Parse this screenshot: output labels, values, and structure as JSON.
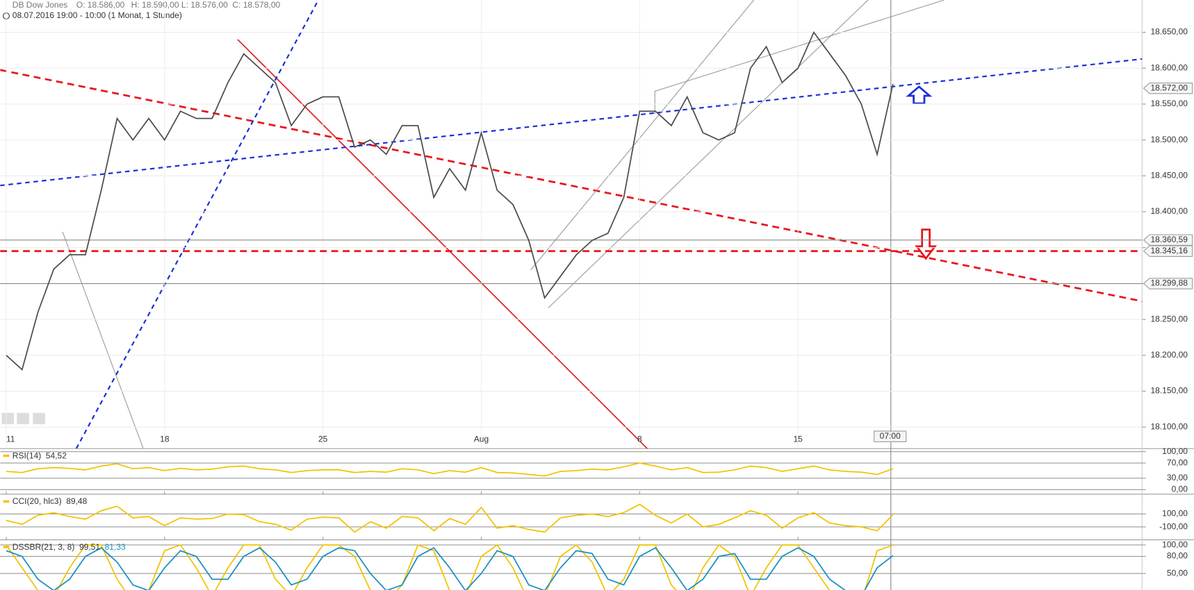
{
  "chart_data": [
    {
      "type": "line",
      "title": "DB Dow Jones",
      "ohlc": [
        "O: 18.586,00",
        "H: 18.590,00",
        "L: 18.576,00",
        "C: 18.578,00"
      ],
      "subtitle": "08.07.2016 19:00 - 10:00 (1 Monat, 1 Stunde)",
      "crosshair_label": "07:00",
      "categories": [
        "11",
        null,
        null,
        null,
        null,
        null,
        null,
        null,
        null,
        null,
        "18",
        null,
        null,
        null,
        null,
        null,
        null,
        null,
        null,
        null,
        "25",
        null,
        null,
        null,
        null,
        null,
        null,
        null,
        null,
        null,
        "Aug",
        null,
        null,
        null,
        null,
        null,
        null,
        null,
        null,
        null,
        "8",
        null,
        null,
        null,
        null,
        null,
        null,
        null,
        null,
        null,
        "15",
        null,
        null,
        null,
        null,
        null,
        null
      ],
      "series": [
        {
          "color": "#4d4d4d",
          "values": [
            18200,
            18180,
            18260,
            18320,
            18340,
            18340,
            18430,
            18530,
            18500,
            18530,
            18500,
            18540,
            18530,
            18530,
            18580,
            18620,
            18600,
            18580,
            18520,
            18550,
            18560,
            18560,
            18490,
            18500,
            18480,
            18520,
            18520,
            18420,
            18460,
            18430,
            18510,
            18430,
            18410,
            18360,
            18280,
            18310,
            18340,
            18360,
            18370,
            18420,
            18540,
            18540,
            18520,
            18560,
            18510,
            18500,
            18510,
            18600,
            18630,
            18580,
            18600,
            18650,
            18620,
            18590,
            18550,
            18480,
            18578
          ]
        }
      ],
      "ylim": [
        18070,
        18695
      ],
      "yticks": [
        {
          "value": 18100,
          "label": "18.100,00"
        },
        {
          "value": 18150,
          "label": "18.150,00"
        },
        {
          "value": 18200,
          "label": "18.200,00"
        },
        {
          "value": 18250,
          "label": "18.250,00"
        },
        {
          "value": 18300,
          "label": "18.300,00"
        },
        {
          "value": 18350,
          "label": "18.350,00"
        },
        {
          "value": 18400,
          "label": "18.400,00"
        },
        {
          "value": 18450,
          "label": "18.450,00"
        },
        {
          "value": 18500,
          "label": "18.500,00"
        },
        {
          "value": 18550,
          "label": "18.550,00"
        },
        {
          "value": 18600,
          "label": "18.600,00"
        },
        {
          "value": 18650,
          "label": "18.650,00"
        }
      ],
      "levels": [
        {
          "value": 18572,
          "label": "18.572,00",
          "color": "#888888",
          "line": "none"
        },
        {
          "value": 18360.59,
          "label": "18.360,59",
          "color": "#888888",
          "line": "solid"
        },
        {
          "value": 18345.16,
          "label": "18.345,16",
          "color": "#e8141b",
          "line": "dashed"
        },
        {
          "value": 18299.88,
          "label": "18.299,88",
          "color": "#888888",
          "line": "solid"
        }
      ],
      "grid": true
    },
    {
      "type": "line",
      "title": "RSI(14)",
      "series": [
        {
          "color": "#f2c300",
          "last": "54,52",
          "values": [
            48,
            45,
            55,
            58,
            56,
            52,
            62,
            68,
            55,
            58,
            50,
            56,
            52,
            54,
            60,
            62,
            55,
            52,
            45,
            50,
            52,
            52,
            45,
            48,
            46,
            55,
            52,
            42,
            50,
            46,
            58,
            45,
            44,
            40,
            36,
            48,
            50,
            54,
            52,
            60,
            70,
            62,
            52,
            58,
            45,
            46,
            52,
            62,
            58,
            48,
            55,
            62,
            52,
            48,
            46,
            40,
            54.52
          ]
        }
      ],
      "ylim": [
        -12,
        108
      ],
      "yticks": [
        {
          "value": 0,
          "label": "0,00"
        },
        {
          "value": 30,
          "label": "30,00"
        },
        {
          "value": 70,
          "label": "70,00"
        },
        {
          "value": 100,
          "label": "100,00"
        }
      ],
      "grid": true
    },
    {
      "type": "line",
      "title": "CCI(20, hlc3)",
      "series": [
        {
          "color": "#f2c300",
          "last": "89,48",
          "values": [
            0,
            -60,
            80,
            120,
            60,
            20,
            150,
            220,
            40,
            60,
            -80,
            40,
            20,
            30,
            100,
            90,
            -20,
            -60,
            -150,
            20,
            50,
            40,
            -180,
            -20,
            -120,
            60,
            40,
            -160,
            30,
            -60,
            200,
            -120,
            -80,
            -140,
            -180,
            40,
            80,
            100,
            60,
            120,
            250,
            80,
            -40,
            100,
            -100,
            -60,
            40,
            150,
            80,
            -120,
            40,
            120,
            -40,
            -80,
            -100,
            -160,
            89.48
          ]
        }
      ],
      "ylim": [
        -300,
        406
      ],
      "yticks": [
        {
          "value": -100,
          "label": "-100,00"
        },
        {
          "value": 100,
          "label": "100,00"
        }
      ],
      "grid": true
    },
    {
      "type": "line",
      "title": "DSSBR(21, 3, 8)",
      "series": [
        {
          "color": "#f2c300",
          "last": "99,51",
          "values": [
            100,
            60,
            20,
            10,
            60,
            100,
            100,
            40,
            0,
            20,
            90,
            100,
            60,
            10,
            60,
            100,
            100,
            40,
            10,
            60,
            100,
            100,
            80,
            20,
            0,
            30,
            100,
            90,
            20,
            10,
            80,
            100,
            60,
            0,
            10,
            80,
            100,
            70,
            10,
            40,
            100,
            100,
            30,
            0,
            60,
            100,
            80,
            10,
            60,
            100,
            100,
            60,
            20,
            10,
            0,
            90,
            99.51
          ]
        },
        {
          "color": "#1a8fc0",
          "last": "81,33",
          "values": [
            90,
            80,
            40,
            20,
            40,
            80,
            95,
            70,
            30,
            20,
            60,
            90,
            80,
            40,
            40,
            80,
            95,
            70,
            30,
            40,
            80,
            95,
            90,
            50,
            20,
            30,
            80,
            95,
            60,
            20,
            50,
            90,
            80,
            30,
            20,
            60,
            90,
            85,
            40,
            30,
            80,
            95,
            60,
            20,
            40,
            80,
            85,
            40,
            40,
            80,
            95,
            80,
            40,
            20,
            10,
            60,
            81.33
          ]
        }
      ],
      "ylim": [
        21,
        109
      ],
      "yticks": [
        {
          "value": 50,
          "label": "50,00"
        },
        {
          "value": 80,
          "label": "80,00"
        },
        {
          "value": 100,
          "label": "100,00"
        }
      ],
      "grid": true
    }
  ]
}
